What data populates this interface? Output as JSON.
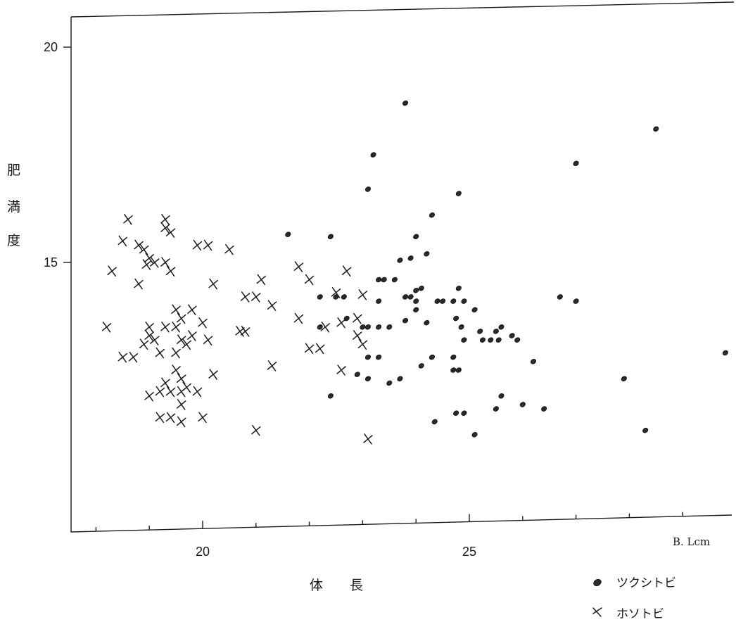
{
  "chart_data": {
    "type": "scatter",
    "title": "",
    "xlabel": "体　　長",
    "x_unit": "B. Lcm",
    "ylabel": [
      "肥",
      "満",
      "度"
    ],
    "xlim": [
      17.6,
      30.0
    ],
    "ylim": [
      10.05,
      20.5
    ],
    "x_ticks": [
      20,
      25
    ],
    "x_tick_labels": [
      "20",
      "25"
    ],
    "y_ticks": [
      20,
      15
    ],
    "y_tick_labels": [
      "20",
      "15"
    ],
    "grid": false,
    "legend_position": "bottom-right",
    "series": [
      {
        "name": "ツクシトビ",
        "marker": "filled-oval",
        "points": [
          [
            23.8,
            18.7
          ],
          [
            28.5,
            18.1
          ],
          [
            23.2,
            17.5
          ],
          [
            27.0,
            17.3
          ],
          [
            23.1,
            16.7
          ],
          [
            24.8,
            16.6
          ],
          [
            24.3,
            16.1
          ],
          [
            21.6,
            15.65
          ],
          [
            22.4,
            15.6
          ],
          [
            24.0,
            15.6
          ],
          [
            24.2,
            15.2
          ],
          [
            23.7,
            15.05
          ],
          [
            23.9,
            15.1
          ],
          [
            23.3,
            14.6
          ],
          [
            23.4,
            14.6
          ],
          [
            23.6,
            14.6
          ],
          [
            24.0,
            14.35
          ],
          [
            24.1,
            14.4
          ],
          [
            24.8,
            14.4
          ],
          [
            22.2,
            14.2
          ],
          [
            22.5,
            14.2
          ],
          [
            22.65,
            14.2
          ],
          [
            23.8,
            14.2
          ],
          [
            23.9,
            14.2
          ],
          [
            26.7,
            14.2
          ],
          [
            27.0,
            14.1
          ],
          [
            23.3,
            14.1
          ],
          [
            24.0,
            14.1
          ],
          [
            24.4,
            14.1
          ],
          [
            24.5,
            14.1
          ],
          [
            24.7,
            14.1
          ],
          [
            24.9,
            14.1
          ],
          [
            24.0,
            13.9
          ],
          [
            25.1,
            13.9
          ],
          [
            22.7,
            13.7
          ],
          [
            23.8,
            13.65
          ],
          [
            24.2,
            13.6
          ],
          [
            24.75,
            13.7
          ],
          [
            22.2,
            13.5
          ],
          [
            23.0,
            13.5
          ],
          [
            23.1,
            13.5
          ],
          [
            23.3,
            13.5
          ],
          [
            23.5,
            13.5
          ],
          [
            24.85,
            13.5
          ],
          [
            25.6,
            13.5
          ],
          [
            25.5,
            13.4
          ],
          [
            25.2,
            13.4
          ],
          [
            25.8,
            13.3
          ],
          [
            24.9,
            13.2
          ],
          [
            25.25,
            13.2
          ],
          [
            25.4,
            13.2
          ],
          [
            25.55,
            13.2
          ],
          [
            25.9,
            13.2
          ],
          [
            23.1,
            12.8
          ],
          [
            23.3,
            12.8
          ],
          [
            24.3,
            12.8
          ],
          [
            24.7,
            12.8
          ],
          [
            29.8,
            12.9
          ],
          [
            24.1,
            12.6
          ],
          [
            24.7,
            12.5
          ],
          [
            24.8,
            12.5
          ],
          [
            23.1,
            12.3
          ],
          [
            22.9,
            12.4
          ],
          [
            23.5,
            12.2
          ],
          [
            23.7,
            12.3
          ],
          [
            22.4,
            11.9
          ],
          [
            25.6,
            11.9
          ],
          [
            26.0,
            11.7
          ],
          [
            24.75,
            11.5
          ],
          [
            24.9,
            11.5
          ],
          [
            25.5,
            11.6
          ],
          [
            26.4,
            11.6
          ],
          [
            24.35,
            11.3
          ],
          [
            25.1,
            11.0
          ],
          [
            28.3,
            11.1
          ],
          [
            26.2,
            12.7
          ],
          [
            27.9,
            12.3
          ]
        ]
      },
      {
        "name": "ホソトビ",
        "marker": "cross",
        "points": [
          [
            18.6,
            16.0
          ],
          [
            19.3,
            16.0
          ],
          [
            19.3,
            15.8
          ],
          [
            19.4,
            15.7
          ],
          [
            18.5,
            15.5
          ],
          [
            18.8,
            15.4
          ],
          [
            18.9,
            15.3
          ],
          [
            19.9,
            15.4
          ],
          [
            20.1,
            15.4
          ],
          [
            20.5,
            15.3
          ],
          [
            19.0,
            15.1
          ],
          [
            19.1,
            15.0
          ],
          [
            19.3,
            15.0
          ],
          [
            18.95,
            14.95
          ],
          [
            19.4,
            14.8
          ],
          [
            18.3,
            14.8
          ],
          [
            18.8,
            14.5
          ],
          [
            20.2,
            14.5
          ],
          [
            21.1,
            14.6
          ],
          [
            21.8,
            14.9
          ],
          [
            22.0,
            14.6
          ],
          [
            22.5,
            14.3
          ],
          [
            22.7,
            14.8
          ],
          [
            23.0,
            14.25
          ],
          [
            20.8,
            14.2
          ],
          [
            21.0,
            14.2
          ],
          [
            21.3,
            14.0
          ],
          [
            19.5,
            13.9
          ],
          [
            19.8,
            13.9
          ],
          [
            19.6,
            13.7
          ],
          [
            18.2,
            13.5
          ],
          [
            19.0,
            13.5
          ],
          [
            19.3,
            13.5
          ],
          [
            19.5,
            13.5
          ],
          [
            20.0,
            13.6
          ],
          [
            21.8,
            13.7
          ],
          [
            22.3,
            13.5
          ],
          [
            22.6,
            13.6
          ],
          [
            22.9,
            13.7
          ],
          [
            20.7,
            13.4
          ],
          [
            20.8,
            13.4
          ],
          [
            22.9,
            13.3
          ],
          [
            19.0,
            13.3
          ],
          [
            19.1,
            13.2
          ],
          [
            19.6,
            13.2
          ],
          [
            19.8,
            13.3
          ],
          [
            20.1,
            13.2
          ],
          [
            19.7,
            13.1
          ],
          [
            18.9,
            13.1
          ],
          [
            22.0,
            13.0
          ],
          [
            22.2,
            13.0
          ],
          [
            23.0,
            13.1
          ],
          [
            18.5,
            12.8
          ],
          [
            18.7,
            12.8
          ],
          [
            19.2,
            12.9
          ],
          [
            19.5,
            12.9
          ],
          [
            21.3,
            12.6
          ],
          [
            19.5,
            12.5
          ],
          [
            20.2,
            12.4
          ],
          [
            22.6,
            12.5
          ],
          [
            19.6,
            12.3
          ],
          [
            19.3,
            12.2
          ],
          [
            19.7,
            12.1
          ],
          [
            19.2,
            12.0
          ],
          [
            19.4,
            12.0
          ],
          [
            19.6,
            12.0
          ],
          [
            19.9,
            12.0
          ],
          [
            19.0,
            11.9
          ],
          [
            19.6,
            11.7
          ],
          [
            19.2,
            11.4
          ],
          [
            19.4,
            11.4
          ],
          [
            19.6,
            11.3
          ],
          [
            20.0,
            11.4
          ],
          [
            21.0,
            11.1
          ],
          [
            23.1,
            10.9
          ]
        ]
      }
    ]
  }
}
